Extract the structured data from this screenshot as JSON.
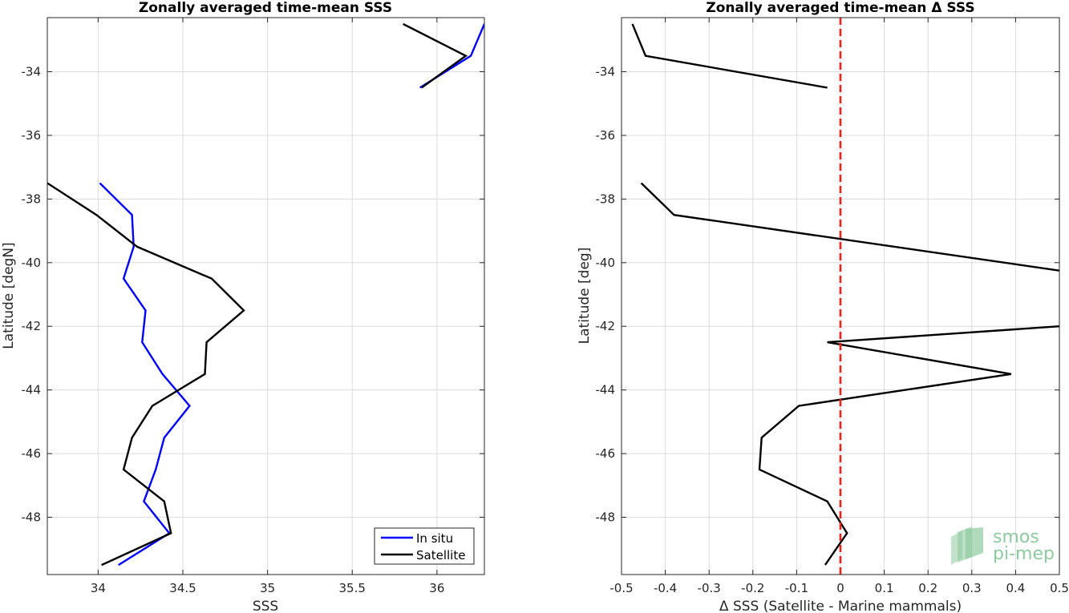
{
  "chart_data": [
    {
      "type": "line",
      "title": "Zonally averaged time-mean SSS",
      "xlabel": "SSS",
      "ylabel": "Latitude [degN]",
      "xlim": [
        33.7,
        36.28
      ],
      "ylim": [
        -49.8,
        -32.3
      ],
      "xticks": [
        34,
        34.5,
        35,
        35.5,
        36
      ],
      "xtick_labels": [
        "34",
        "34.5",
        "35",
        "35.5",
        "36"
      ],
      "yticks": [
        -48,
        -46,
        -44,
        -42,
        -40,
        -38,
        -36,
        -34
      ],
      "ytick_labels": [
        "-48",
        "-46",
        "-44",
        "-42",
        "-40",
        "-38",
        "-36",
        "-34"
      ],
      "grid": true,
      "legend_position": "bottom-right",
      "series": [
        {
          "name": "In situ",
          "color": "#0000ff",
          "segments": [
            [
              [
                34.12,
                -49.5
              ],
              [
                34.42,
                -48.5
              ],
              [
                34.27,
                -47.5
              ],
              [
                34.34,
                -46.5
              ],
              [
                34.39,
                -45.5
              ],
              [
                34.54,
                -44.5
              ],
              [
                34.38,
                -43.5
              ],
              [
                34.26,
                -42.5
              ],
              [
                34.28,
                -41.5
              ],
              [
                34.15,
                -40.5
              ],
              [
                34.21,
                -39.5
              ],
              [
                34.2,
                -38.5
              ],
              [
                34.01,
                -37.5
              ]
            ],
            [
              [
                35.9,
                -34.5
              ],
              [
                36.2,
                -33.5
              ],
              [
                36.28,
                -32.5
              ]
            ]
          ]
        },
        {
          "name": "Satellite",
          "color": "#000000",
          "segments": [
            [
              [
                34.02,
                -49.5
              ],
              [
                34.43,
                -48.5
              ],
              [
                34.39,
                -47.5
              ],
              [
                34.15,
                -46.5
              ],
              [
                34.2,
                -45.5
              ],
              [
                34.32,
                -44.5
              ],
              [
                34.63,
                -43.5
              ],
              [
                34.64,
                -42.5
              ],
              [
                34.86,
                -41.5
              ],
              [
                34.67,
                -40.5
              ],
              [
                34.23,
                -39.5
              ],
              [
                33.99,
                -38.5
              ],
              [
                33.7,
                -37.5
              ]
            ],
            [
              [
                35.91,
                -34.5
              ],
              [
                36.17,
                -33.5
              ],
              [
                35.8,
                -32.5
              ]
            ]
          ]
        }
      ]
    },
    {
      "type": "line",
      "title": "Zonally averaged time-mean Δ SSS",
      "xlabel": "Δ SSS (Satellite - Marine mammals)",
      "ylabel": "Latitude [deg]",
      "xlim": [
        -0.5,
        0.5
      ],
      "ylim": [
        -49.8,
        -32.3
      ],
      "xticks": [
        -0.5,
        -0.4,
        -0.3,
        -0.2,
        -0.1,
        0,
        0.1,
        0.2,
        0.3,
        0.4,
        0.5
      ],
      "xtick_labels": [
        "-0.5",
        "-0.4",
        "-0.3",
        "-0.2",
        "-0.1",
        "0",
        "0.1",
        "0.2",
        "0.3",
        "0.4",
        "0.5"
      ],
      "yticks": [
        -48,
        -46,
        -44,
        -42,
        -40,
        -38,
        -36,
        -34
      ],
      "ytick_labels": [
        "-48",
        "-46",
        "-44",
        "-42",
        "-40",
        "-38",
        "-36",
        "-34"
      ],
      "grid": true,
      "reference_line": {
        "x": 0,
        "color": "#e8221d",
        "style": "dashed"
      },
      "series": [
        {
          "color": "#000000",
          "segments": [
            [
              [
                -0.035,
                -49.5
              ],
              [
                0.015,
                -48.5
              ],
              [
                -0.03,
                -47.5
              ],
              [
                -0.185,
                -46.5
              ],
              [
                -0.18,
                -45.5
              ],
              [
                -0.095,
                -44.5
              ],
              [
                0.39,
                -43.5
              ],
              [
                -0.03,
                -42.5
              ],
              [
                0.5,
                -42.0
              ]
            ],
            [
              [
                0.5,
                -40.25
              ],
              [
                -0.38,
                -38.5
              ],
              [
                -0.455,
                -37.5
              ]
            ],
            [
              [
                -0.03,
                -34.5
              ],
              [
                -0.445,
                -33.5
              ],
              [
                -0.475,
                -32.5
              ]
            ]
          ]
        }
      ]
    }
  ],
  "legend": {
    "items": [
      "In situ",
      "Satellite"
    ]
  },
  "logo": {
    "line1": "smos",
    "line2": "pi-mep",
    "color": "#8fcaa0"
  }
}
